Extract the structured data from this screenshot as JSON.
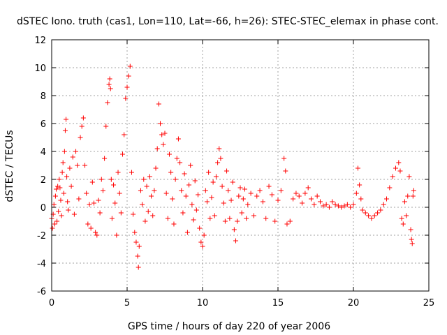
{
  "chart_data": {
    "type": "scatter",
    "title": "dSTEC Iono. truth (cas1, Lon=110, Lat=-66, h=26): STEC-STEC_elemax in phase cont.",
    "xlabel": "GPS time / hours of day 220 of year 2006",
    "ylabel": "dSTEC  / TECUs",
    "xlim": [
      0,
      25
    ],
    "ylim": [
      -6,
      12
    ],
    "xticks": [
      0,
      5,
      10,
      15,
      20,
      25
    ],
    "yticks": [
      -6,
      -4,
      -2,
      0,
      2,
      4,
      6,
      8,
      10,
      12
    ],
    "xtick_labels": [
      "0",
      "5",
      "10",
      "15",
      "20",
      "25"
    ],
    "ytick_labels": [
      "-6",
      "-4",
      "-2",
      "0",
      "2",
      "4",
      "6",
      "8",
      "10",
      "12"
    ],
    "grid": true,
    "marker": "+",
    "color": "#ff0000",
    "series": [
      {
        "name": "dSTEC",
        "points": [
          [
            0.0,
            -0.8
          ],
          [
            0.05,
            -1.5
          ],
          [
            0.1,
            -0.5
          ],
          [
            0.15,
            0.2
          ],
          [
            0.2,
            -1.2
          ],
          [
            0.25,
            0.8
          ],
          [
            0.3,
            1.3
          ],
          [
            0.35,
            -1.0
          ],
          [
            0.4,
            1.5
          ],
          [
            0.45,
            -0.3
          ],
          [
            0.5,
            2.0
          ],
          [
            0.55,
            1.4
          ],
          [
            0.6,
            0.5
          ],
          [
            0.65,
            -0.6
          ],
          [
            0.7,
            2.5
          ],
          [
            0.75,
            3.2
          ],
          [
            0.8,
            1.0
          ],
          [
            0.85,
            4.0
          ],
          [
            0.9,
            5.5
          ],
          [
            0.95,
            6.3
          ],
          [
            1.0,
            2.2
          ],
          [
            1.05,
            0.4
          ],
          [
            1.1,
            -0.2
          ],
          [
            1.2,
            2.8
          ],
          [
            1.3,
            1.5
          ],
          [
            1.4,
            3.6
          ],
          [
            1.5,
            -0.5
          ],
          [
            1.6,
            4.0
          ],
          [
            1.7,
            3.0
          ],
          [
            1.8,
            0.6
          ],
          [
            1.9,
            5.0
          ],
          [
            2.0,
            5.8
          ],
          [
            2.1,
            6.4
          ],
          [
            2.2,
            3.0
          ],
          [
            2.3,
            1.0
          ],
          [
            2.4,
            -1.2
          ],
          [
            2.5,
            0.2
          ],
          [
            2.6,
            -1.5
          ],
          [
            2.7,
            1.8
          ],
          [
            2.8,
            0.3
          ],
          [
            2.9,
            -1.8
          ],
          [
            3.0,
            -2.0
          ],
          [
            3.1,
            0.5
          ],
          [
            3.2,
            -0.4
          ],
          [
            3.3,
            2.0
          ],
          [
            3.4,
            1.2
          ],
          [
            3.5,
            3.5
          ],
          [
            3.6,
            5.8
          ],
          [
            3.7,
            7.5
          ],
          [
            3.8,
            8.8
          ],
          [
            3.85,
            9.2
          ],
          [
            3.9,
            8.5
          ],
          [
            3.95,
            2.0
          ],
          [
            4.0,
            -0.8
          ],
          [
            4.1,
            1.6
          ],
          [
            4.2,
            0.3
          ],
          [
            4.3,
            -2.0
          ],
          [
            4.4,
            2.5
          ],
          [
            4.5,
            1.0
          ],
          [
            4.6,
            -0.4
          ],
          [
            4.7,
            3.8
          ],
          [
            4.8,
            5.2
          ],
          [
            4.9,
            7.8
          ],
          [
            5.0,
            8.6
          ],
          [
            5.1,
            9.4
          ],
          [
            5.2,
            10.1
          ],
          [
            5.3,
            2.5
          ],
          [
            5.4,
            -0.5
          ],
          [
            5.5,
            -1.8
          ],
          [
            5.6,
            -2.5
          ],
          [
            5.7,
            -3.5
          ],
          [
            5.75,
            -4.3
          ],
          [
            5.8,
            -2.8
          ],
          [
            5.9,
            1.2
          ],
          [
            6.0,
            0.2
          ],
          [
            6.1,
            2.0
          ],
          [
            6.2,
            -1.0
          ],
          [
            6.3,
            1.5
          ],
          [
            6.4,
            -0.3
          ],
          [
            6.5,
            2.2
          ],
          [
            6.6,
            0.8
          ],
          [
            6.7,
            -0.6
          ],
          [
            6.8,
            1.2
          ],
          [
            6.9,
            2.8
          ],
          [
            7.0,
            4.2
          ],
          [
            7.1,
            7.4
          ],
          [
            7.2,
            6.0
          ],
          [
            7.3,
            5.2
          ],
          [
            7.4,
            4.5
          ],
          [
            7.5,
            5.3
          ],
          [
            7.6,
            1.0
          ],
          [
            7.7,
            -0.8
          ],
          [
            7.8,
            3.8
          ],
          [
            7.9,
            2.5
          ],
          [
            8.0,
            0.6
          ],
          [
            8.1,
            -1.2
          ],
          [
            8.2,
            2.0
          ],
          [
            8.3,
            3.5
          ],
          [
            8.4,
            4.9
          ],
          [
            8.5,
            3.2
          ],
          [
            8.6,
            1.2
          ],
          [
            8.7,
            -0.4
          ],
          [
            8.8,
            2.4
          ],
          [
            8.9,
            0.8
          ],
          [
            9.0,
            -1.8
          ],
          [
            9.1,
            1.6
          ],
          [
            9.2,
            3.0
          ],
          [
            9.3,
            0.2
          ],
          [
            9.4,
            -0.9
          ],
          [
            9.5,
            1.9
          ],
          [
            9.6,
            -0.2
          ],
          [
            9.7,
            0.9
          ],
          [
            9.8,
            -1.5
          ],
          [
            9.9,
            -2.5
          ],
          [
            10.0,
            -2.8
          ],
          [
            10.1,
            -2.0
          ],
          [
            10.2,
            1.2
          ],
          [
            10.3,
            0.4
          ],
          [
            10.4,
            2.5
          ],
          [
            10.5,
            -0.8
          ],
          [
            10.6,
            0.7
          ],
          [
            10.7,
            1.8
          ],
          [
            10.8,
            -0.6
          ],
          [
            10.9,
            2.2
          ],
          [
            11.0,
            3.2
          ],
          [
            11.1,
            4.2
          ],
          [
            11.2,
            3.5
          ],
          [
            11.3,
            1.5
          ],
          [
            11.4,
            0.3
          ],
          [
            11.5,
            -1.0
          ],
          [
            11.6,
            2.6
          ],
          [
            11.7,
            1.2
          ],
          [
            11.8,
            -0.8
          ],
          [
            11.9,
            0.5
          ],
          [
            12.0,
            1.8
          ],
          [
            12.1,
            -1.6
          ],
          [
            12.2,
            -2.4
          ],
          [
            12.3,
            -1.0
          ],
          [
            12.4,
            0.8
          ],
          [
            12.5,
            1.4
          ],
          [
            12.6,
            -0.4
          ],
          [
            12.7,
            0.6
          ],
          [
            12.8,
            1.3
          ],
          [
            12.9,
            -0.8
          ],
          [
            13.0,
            0.2
          ],
          [
            13.2,
            1.0
          ],
          [
            13.4,
            -0.6
          ],
          [
            13.6,
            0.8
          ],
          [
            13.8,
            1.2
          ],
          [
            14.0,
            0.4
          ],
          [
            14.2,
            -0.8
          ],
          [
            14.4,
            1.5
          ],
          [
            14.6,
            0.9
          ],
          [
            14.8,
            -1.0
          ],
          [
            15.0,
            0.5
          ],
          [
            15.2,
            1.2
          ],
          [
            15.4,
            3.5
          ],
          [
            15.5,
            2.6
          ],
          [
            15.6,
            -1.2
          ],
          [
            15.8,
            -1.0
          ],
          [
            16.0,
            0.6
          ],
          [
            16.2,
            1.0
          ],
          [
            16.4,
            0.8
          ],
          [
            16.6,
            0.3
          ],
          [
            16.8,
            1.0
          ],
          [
            17.0,
            1.4
          ],
          [
            17.2,
            0.6
          ],
          [
            17.4,
            0.2
          ],
          [
            17.6,
            0.8
          ],
          [
            17.8,
            0.4
          ],
          [
            18.0,
            0.1
          ],
          [
            18.2,
            0.2
          ],
          [
            18.4,
            0.0
          ],
          [
            18.6,
            0.4
          ],
          [
            18.8,
            0.2
          ],
          [
            19.0,
            0.1
          ],
          [
            19.2,
            0.0
          ],
          [
            19.4,
            0.1
          ],
          [
            19.6,
            0.2
          ],
          [
            19.8,
            0.0
          ],
          [
            20.0,
            0.2
          ],
          [
            20.2,
            1.0
          ],
          [
            20.3,
            2.8
          ],
          [
            20.4,
            1.6
          ],
          [
            20.5,
            0.6
          ],
          [
            20.6,
            -0.2
          ],
          [
            20.8,
            -0.4
          ],
          [
            21.0,
            -0.6
          ],
          [
            21.2,
            -0.8
          ],
          [
            21.4,
            -0.6
          ],
          [
            21.6,
            -0.4
          ],
          [
            21.8,
            -0.2
          ],
          [
            22.0,
            0.2
          ],
          [
            22.2,
            0.6
          ],
          [
            22.4,
            1.4
          ],
          [
            22.6,
            2.2
          ],
          [
            22.8,
            2.8
          ],
          [
            23.0,
            3.2
          ],
          [
            23.1,
            2.6
          ],
          [
            23.2,
            -0.8
          ],
          [
            23.3,
            -1.2
          ],
          [
            23.4,
            0.4
          ],
          [
            23.5,
            -0.6
          ],
          [
            23.6,
            0.8
          ],
          [
            23.7,
            2.2
          ],
          [
            23.8,
            -1.6
          ],
          [
            23.85,
            -2.3
          ],
          [
            23.9,
            -2.6
          ],
          [
            23.95,
            0.8
          ],
          [
            24.0,
            1.2
          ]
        ]
      }
    ]
  }
}
